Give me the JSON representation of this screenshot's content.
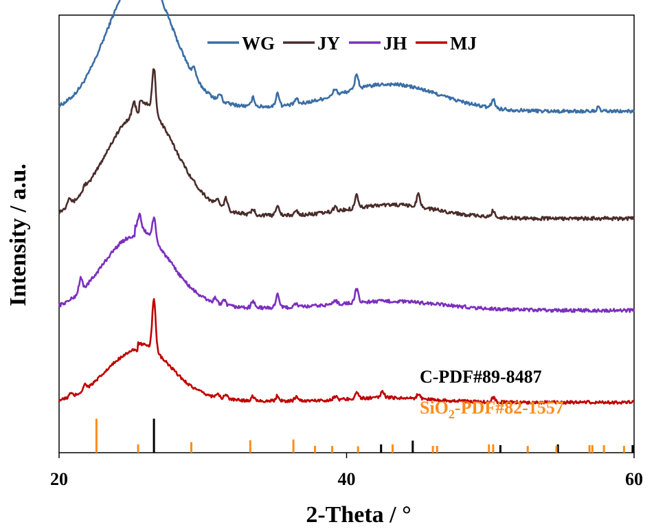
{
  "chart_data": {
    "type": "line",
    "xlabel": "2-Theta / °",
    "ylabel": "Intensity / a.u.",
    "xlim": [
      20,
      60
    ],
    "xticks": [
      "20",
      "40",
      "60"
    ],
    "y_ticks_shown": false,
    "legend": {
      "placement": "top-center",
      "orientation": "horizontal"
    },
    "series": [
      {
        "name": "WG",
        "color": "#3A6EA5",
        "baseline": 0.78,
        "hump": {
          "center": 25.5,
          "width": 2.2,
          "height": 0.3
        },
        "hump2": {
          "center": 43.0,
          "width": 3.5,
          "height": 0.06
        },
        "peaks": [
          [
            25.3,
            0.04
          ],
          [
            26.6,
            0.17
          ],
          [
            29.4,
            0.02
          ],
          [
            31.2,
            0.015
          ],
          [
            33.5,
            0.02
          ],
          [
            35.2,
            0.03
          ],
          [
            36.5,
            0.012
          ],
          [
            39.2,
            0.015
          ],
          [
            40.7,
            0.035
          ],
          [
            50.2,
            0.02
          ],
          [
            57.5,
            0.008
          ]
        ],
        "noise": 0.004
      },
      {
        "name": "JY",
        "color": "#4A2C2A",
        "baseline": 0.535,
        "hump": {
          "center": 25.6,
          "width": 2.4,
          "height": 0.24
        },
        "hump2": {
          "center": 43.2,
          "width": 3.2,
          "height": 0.03
        },
        "peaks": [
          [
            20.7,
            0.02
          ],
          [
            21.8,
            0.01
          ],
          [
            25.2,
            0.03
          ],
          [
            26.6,
            0.1
          ],
          [
            31.0,
            0.015
          ],
          [
            31.6,
            0.025
          ],
          [
            33.5,
            0.012
          ],
          [
            35.2,
            0.025
          ],
          [
            36.5,
            0.01
          ],
          [
            39.2,
            0.01
          ],
          [
            40.7,
            0.03
          ],
          [
            45.0,
            0.03
          ],
          [
            50.2,
            0.015
          ]
        ],
        "noise": 0.004
      },
      {
        "name": "JH",
        "color": "#7B2FBE",
        "baseline": 0.325,
        "hump": {
          "center": 25.3,
          "width": 2.3,
          "height": 0.17
        },
        "hump2": {
          "center": 43.0,
          "width": 3.8,
          "height": 0.02
        },
        "peaks": [
          [
            21.5,
            0.03
          ],
          [
            25.6,
            0.03
          ],
          [
            26.6,
            0.05
          ],
          [
            30.9,
            0.012
          ],
          [
            31.5,
            0.01
          ],
          [
            33.5,
            0.015
          ],
          [
            35.2,
            0.032
          ],
          [
            36.5,
            0.008
          ],
          [
            39.2,
            0.01
          ],
          [
            40.7,
            0.03
          ]
        ],
        "noise": 0.004
      },
      {
        "name": "MJ",
        "color": "#C00000",
        "baseline": 0.115,
        "hump": {
          "center": 25.5,
          "width": 2.2,
          "height": 0.12
        },
        "hump2": {
          "center": 43.0,
          "width": 3.0,
          "height": 0.01
        },
        "peaks": [
          [
            20.8,
            0.008
          ],
          [
            21.8,
            0.012
          ],
          [
            26.6,
            0.12
          ],
          [
            31.0,
            0.01
          ],
          [
            31.6,
            0.01
          ],
          [
            33.5,
            0.01
          ],
          [
            35.2,
            0.012
          ],
          [
            36.5,
            0.01
          ],
          [
            39.2,
            0.008
          ],
          [
            40.7,
            0.015
          ],
          [
            42.5,
            0.015
          ],
          [
            45.0,
            0.01
          ],
          [
            50.2,
            0.01
          ]
        ],
        "noise": 0.0035
      }
    ],
    "reference_patterns": [
      {
        "label": "C-PDF#89-8487",
        "color": "#000000",
        "lines": [
          [
            26.6,
            0.9
          ],
          [
            42.4,
            0.22
          ],
          [
            44.6,
            0.32
          ],
          [
            50.7,
            0.2
          ],
          [
            54.7,
            0.22
          ],
          [
            59.9,
            0.2
          ]
        ]
      },
      {
        "label": "SiO",
        "label_sub": "2",
        "label_rest": "-PDF#82-1557",
        "color": "#FF8C1A",
        "lines": [
          [
            22.6,
            0.9
          ],
          [
            25.5,
            0.22
          ],
          [
            29.2,
            0.28
          ],
          [
            33.3,
            0.33
          ],
          [
            36.3,
            0.35
          ],
          [
            37.8,
            0.18
          ],
          [
            39.0,
            0.18
          ],
          [
            40.8,
            0.17
          ],
          [
            43.2,
            0.22
          ],
          [
            46.0,
            0.18
          ],
          [
            46.3,
            0.18
          ],
          [
            49.9,
            0.22
          ],
          [
            50.2,
            0.22
          ],
          [
            52.6,
            0.18
          ],
          [
            54.6,
            0.18
          ],
          [
            56.9,
            0.2
          ],
          [
            57.1,
            0.2
          ],
          [
            57.9,
            0.2
          ],
          [
            59.3,
            0.18
          ]
        ]
      }
    ]
  }
}
